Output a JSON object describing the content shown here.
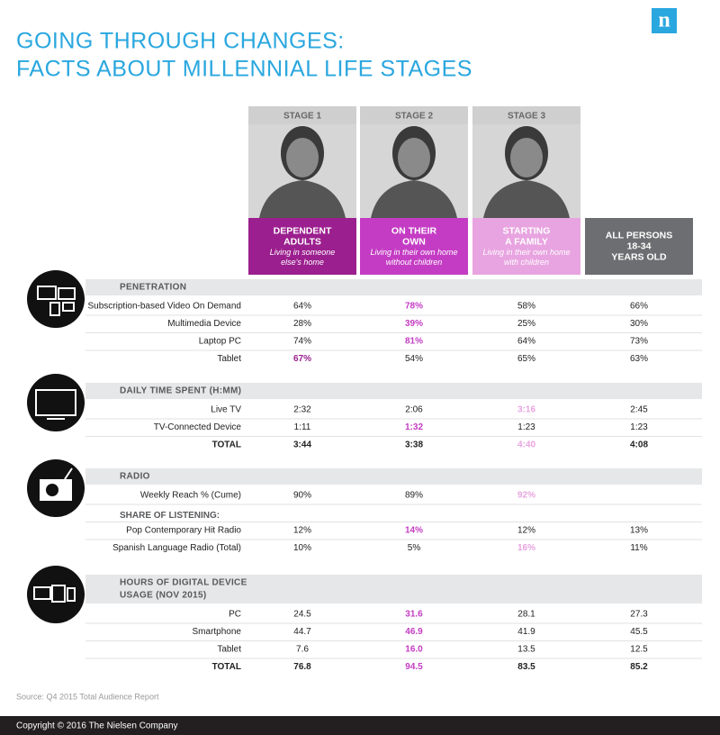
{
  "header": {
    "title": [
      "GOING THROUGH CHANGES:",
      "FACTS ABOUT MILLENNIAL LIFE STAGES"
    ],
    "logo": "n"
  },
  "columns": [
    {
      "stage": "STAGE 1",
      "name": [
        "DEPENDENT",
        "ADULTS"
      ],
      "description": [
        "Living in someone",
        "else's home"
      ],
      "color": "#9b1f8e"
    },
    {
      "stage": "STAGE 2",
      "name": [
        "ON THEIR",
        "OWN"
      ],
      "description": [
        "Living in their own home",
        "without children"
      ],
      "color": "#c43cc4"
    },
    {
      "stage": "STAGE 3",
      "name": [
        "STARTING",
        "A FAMILY"
      ],
      "description": [
        "Living in their own home",
        "with children"
      ],
      "color": "#e8a4e0"
    },
    {
      "name": [
        "ALL PERSONS",
        "18-34",
        "YEARS OLD"
      ],
      "color": "#6d6e71"
    }
  ],
  "sections": [
    {
      "headings": [
        "PENETRATION"
      ],
      "rows": [
        {
          "label": "Subscription-based Video On Demand",
          "values": [
            "64%",
            "78%",
            "58%",
            "66%"
          ],
          "highlight": 1
        },
        {
          "label": "Multimedia  Device",
          "values": [
            "28%",
            "39%",
            "25%",
            "30%"
          ],
          "highlight": 1
        },
        {
          "label": "Laptop PC",
          "values": [
            "74%",
            "81%",
            "64%",
            "73%"
          ],
          "highlight": 1
        },
        {
          "label": "Tablet",
          "values": [
            "67%",
            "54%",
            "65%",
            "63%"
          ],
          "highlight": 0
        }
      ]
    },
    {
      "headings": [
        "DAILY TIME SPENT (H:MM)"
      ],
      "rows": [
        {
          "label": "Live TV",
          "values": [
            "2:32",
            "2:06",
            "3:16",
            "2:45"
          ],
          "highlight": 2
        },
        {
          "label": "TV-Connected Device",
          "values": [
            "1:11",
            "1:32",
            "1:23",
            "1:23"
          ],
          "highlight": 1
        },
        {
          "label": "TOTAL",
          "values": [
            "3:44",
            "3:38",
            "4:40",
            "4:08"
          ],
          "highlight": 2,
          "total": true
        }
      ]
    },
    {
      "headings": [
        "RADIO"
      ],
      "rows": [
        {
          "label": "Weekly Reach % (Cume)",
          "values": [
            "90%",
            "89%",
            "92%",
            null
          ],
          "highlight": 2
        },
        {
          "subheading": "SHARE OF LISTENING:"
        },
        {
          "label": "Pop Contemporary Hit Radio",
          "values": [
            "12%",
            "14%",
            "12%",
            "13%"
          ],
          "highlight": 1
        },
        {
          "label": "Spanish Language Radio (Total)",
          "values": [
            "10%",
            "5%",
            "16%",
            "11%"
          ],
          "highlight": 2
        }
      ]
    },
    {
      "headings": [
        "HOURS OF DIGITAL DEVICE",
        "USAGE (NOV 2015)"
      ],
      "rows": [
        {
          "label": "PC",
          "values": [
            "24.5",
            "31.6",
            "28.1",
            "27.3"
          ],
          "highlight": 1
        },
        {
          "label": "Smartphone",
          "values": [
            "44.7",
            "46.9",
            "41.9",
            "45.5"
          ],
          "highlight": 1
        },
        {
          "label": "Tablet",
          "values": [
            "7.6",
            "16.0",
            "13.5",
            "12.5"
          ],
          "highlight": 1
        },
        {
          "label": "TOTAL",
          "values": [
            "76.8",
            "94.5",
            "83.5",
            "85.2"
          ],
          "highlight": 1,
          "total": true
        }
      ]
    }
  ],
  "source": "Source: Q4 2015 Total Audience Report",
  "footer": "Copyright © 2016 The Nielsen Company"
}
